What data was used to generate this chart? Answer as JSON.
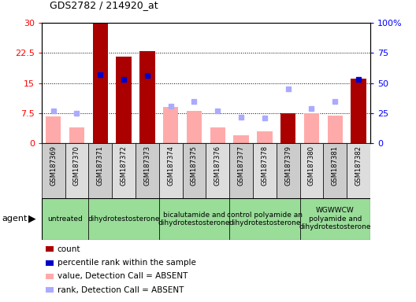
{
  "title": "GDS2782 / 214920_at",
  "samples": [
    "GSM187369",
    "GSM187370",
    "GSM187371",
    "GSM187372",
    "GSM187373",
    "GSM187374",
    "GSM187375",
    "GSM187376",
    "GSM187377",
    "GSM187378",
    "GSM187379",
    "GSM187380",
    "GSM187381",
    "GSM187382"
  ],
  "count_values": [
    null,
    null,
    30.0,
    21.5,
    23.0,
    null,
    null,
    null,
    null,
    null,
    7.5,
    null,
    null,
    16.0
  ],
  "percentile_values": [
    null,
    null,
    57.0,
    53.0,
    56.0,
    null,
    null,
    null,
    null,
    null,
    null,
    null,
    null,
    53.0
  ],
  "absent_value": [
    6.8,
    4.0,
    null,
    null,
    null,
    9.0,
    8.0,
    4.0,
    2.0,
    3.0,
    null,
    7.5,
    7.0,
    null
  ],
  "absent_rank": [
    27.0,
    25.0,
    null,
    null,
    null,
    31.0,
    35.0,
    27.0,
    22.0,
    21.0,
    45.0,
    29.0,
    35.0,
    null
  ],
  "agents": [
    {
      "label": "untreated",
      "samples": [
        0,
        1
      ]
    },
    {
      "label": "dihydrotestosterone",
      "samples": [
        2,
        3,
        4
      ]
    },
    {
      "label": "bicalutamide and\ndihydrotestosterone",
      "samples": [
        5,
        6,
        7
      ]
    },
    {
      "label": "control polyamide an\ndihydrotestosterone",
      "samples": [
        8,
        9,
        10
      ]
    },
    {
      "label": "WGWWCW\npolyamide and\ndihydrotestosterone",
      "samples": [
        11,
        12,
        13
      ]
    }
  ],
  "ylim_left": [
    0,
    30
  ],
  "ylim_right": [
    0,
    100
  ],
  "yticks_left": [
    0,
    7.5,
    15,
    22.5,
    30
  ],
  "yticks_right": [
    0,
    25,
    50,
    75,
    100
  ],
  "ytick_labels_left": [
    "0",
    "7.5",
    "15",
    "22.5",
    "30"
  ],
  "ytick_labels_right": [
    "0",
    "25",
    "50",
    "75",
    "100%"
  ],
  "count_color": "#aa0000",
  "percentile_color": "#0000cc",
  "absent_value_color": "#ffaaaa",
  "absent_rank_color": "#aaaaff",
  "background_plot": "#ffffff",
  "background_xlabels_even": "#cccccc",
  "background_xlabels_odd": "#dddddd",
  "background_agent": "#99dd99",
  "grid_yticks": [
    7.5,
    15,
    22.5
  ],
  "legend_items": [
    {
      "color": "#aa0000",
      "label": "count"
    },
    {
      "color": "#0000cc",
      "label": "percentile rank within the sample"
    },
    {
      "color": "#ffaaaa",
      "label": "value, Detection Call = ABSENT"
    },
    {
      "color": "#aaaaff",
      "label": "rank, Detection Call = ABSENT"
    }
  ]
}
